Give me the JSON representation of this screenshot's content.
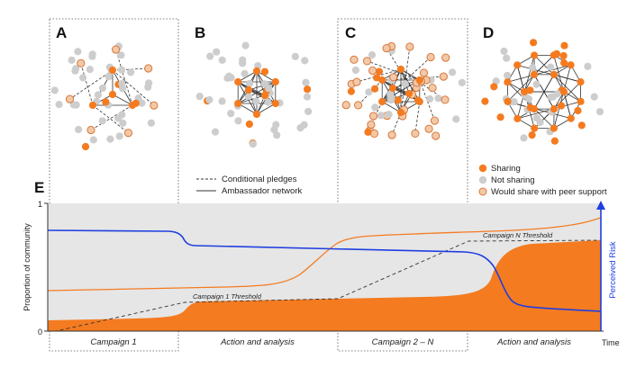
{
  "panels": {
    "a": "A",
    "b": "B",
    "c": "C",
    "d": "D",
    "e": "E"
  },
  "legend_lines": {
    "dashed": "Conditional pledges",
    "solid": "Ambassador network"
  },
  "legend_nodes": {
    "sharing": "Sharing",
    "not_sharing": "Not sharing",
    "peer": "Would share with peer support"
  },
  "colors": {
    "sharing": "#f47b20",
    "not_sharing": "#cdcdcd",
    "peer_fill": "#f2c9a8",
    "peer_stroke": "#d9783a",
    "risk": "#1f3fe0",
    "area": "#f47b20",
    "background": "#e6e6e6"
  },
  "chart_data": {
    "type": "area",
    "ylabel": "Proportion of community",
    "y2label": "Perceived Risk",
    "xlabel": "Time",
    "ytick_labels": [
      "0",
      "1"
    ],
    "ylim": [
      0,
      1
    ],
    "x_axis_label_position": "right",
    "phases": [
      "Campaign 1",
      "Action and analysis",
      "Campaign 2 – N",
      "Action and analysis"
    ],
    "annotations": [
      "Campaign 1 Threshold",
      "Campaign N Threshold"
    ]
  }
}
